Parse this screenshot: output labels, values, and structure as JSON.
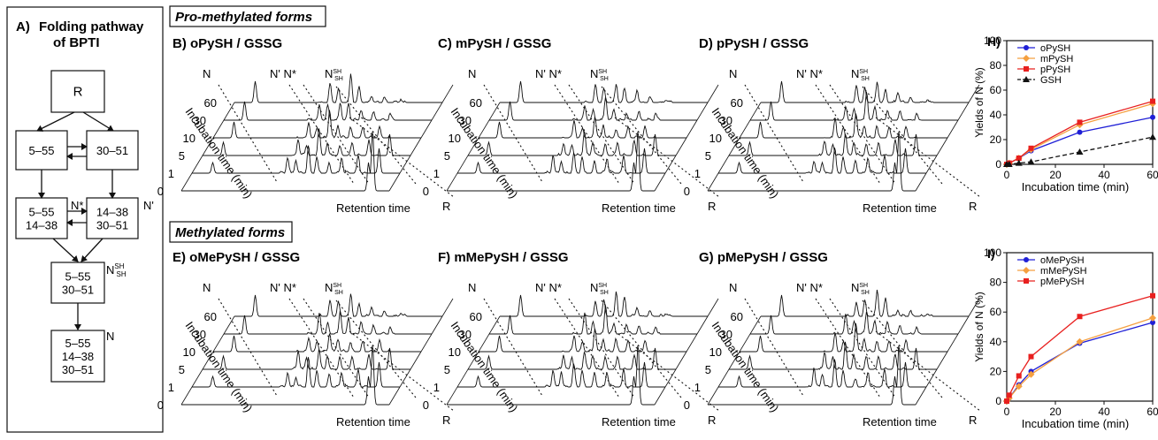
{
  "panel_a": {
    "letter": "A)",
    "title_line1": "Folding pathway",
    "title_line2": "of BPTI",
    "nodes": {
      "R": [
        "R"
      ],
      "s555": [
        "5–55"
      ],
      "s3051": [
        "30–51"
      ],
      "nstar": [
        "5–55",
        "14–38"
      ],
      "nprime": [
        "14–38",
        "30–51"
      ],
      "nshsh": [
        "5–55",
        "30–51"
      ],
      "native": [
        "5–55",
        "14–38",
        "30–51"
      ]
    },
    "labels": {
      "nstar": "N*",
      "nprime": "N'",
      "nshsh_main": "N",
      "nshsh_sub": "SH",
      "native": "N"
    }
  },
  "group_titles": {
    "pro": "Pro-methylated forms",
    "meth": "Methylated forms"
  },
  "hplc_common": {
    "y_axis_label": "Incubation time (min)",
    "x_axis_label": "Retention time",
    "times": [
      "60",
      "30",
      "10",
      "5",
      "1",
      "0"
    ],
    "peak_N": "N",
    "peak_Nprime_Nstar": "N' N*",
    "peak_NSHSH": "N",
    "peak_NSHSH_sub": "SH",
    "peak_R": "R"
  },
  "hplc_panels": [
    {
      "title": "B) oPySH / GSSG"
    },
    {
      "title": "C) mPySH / GSSG"
    },
    {
      "title": "D) pPySH / GSSG"
    },
    {
      "title": "E) oMePySH / GSSG"
    },
    {
      "title": "F) mMePySH / GSSG"
    },
    {
      "title": "G) pMePySH / GSSG"
    }
  ],
  "chart_data": [
    {
      "type": "line",
      "panel_letter": "H)",
      "ylabel": "Yields of N (%)",
      "xlabel": "Incubation time (min)",
      "xlim": [
        0,
        60
      ],
      "ylim": [
        0,
        100
      ],
      "xticks": [
        0,
        20,
        40,
        60
      ],
      "yticks": [
        0,
        20,
        40,
        60,
        80,
        100
      ],
      "x": [
        0,
        1,
        5,
        10,
        30,
        60
      ],
      "series": [
        {
          "name": "oPySH",
          "color": "#1f1fd6",
          "marker": "circle",
          "dashed": false,
          "values": [
            0,
            1,
            5,
            11,
            26,
            38
          ]
        },
        {
          "name": "mPySH",
          "color": "#f5a040",
          "marker": "diamond",
          "dashed": false,
          "values": [
            0,
            1,
            5,
            12,
            32,
            49
          ]
        },
        {
          "name": "pPySH",
          "color": "#e8201f",
          "marker": "square",
          "dashed": false,
          "values": [
            0,
            1,
            5,
            13,
            34,
            51
          ]
        },
        {
          "name": "GSH",
          "color": "#111111",
          "marker": "triangle",
          "dashed": true,
          "values": [
            0,
            0,
            1,
            2,
            10,
            22
          ]
        }
      ],
      "legend_position": "top-right"
    },
    {
      "type": "line",
      "panel_letter": "I)",
      "ylabel": "Yields of N (%)",
      "xlabel": "Incubation time (min)",
      "xlim": [
        0,
        60
      ],
      "ylim": [
        0,
        100
      ],
      "xticks": [
        0,
        20,
        40,
        60
      ],
      "yticks": [
        0,
        20,
        40,
        60,
        80,
        100
      ],
      "x": [
        0,
        1,
        5,
        10,
        30,
        60
      ],
      "series": [
        {
          "name": "oMePySH",
          "color": "#1f1fd6",
          "marker": "circle",
          "dashed": false,
          "values": [
            0,
            2,
            11,
            20,
            39,
            53
          ]
        },
        {
          "name": "mMePySH",
          "color": "#f5a040",
          "marker": "diamond",
          "dashed": false,
          "values": [
            0,
            2,
            10,
            18,
            40,
            56
          ]
        },
        {
          "name": "pMePySH",
          "color": "#e8201f",
          "marker": "square",
          "dashed": false,
          "values": [
            0,
            4,
            17,
            30,
            57,
            71
          ]
        }
      ],
      "legend_position": "top-right"
    }
  ]
}
